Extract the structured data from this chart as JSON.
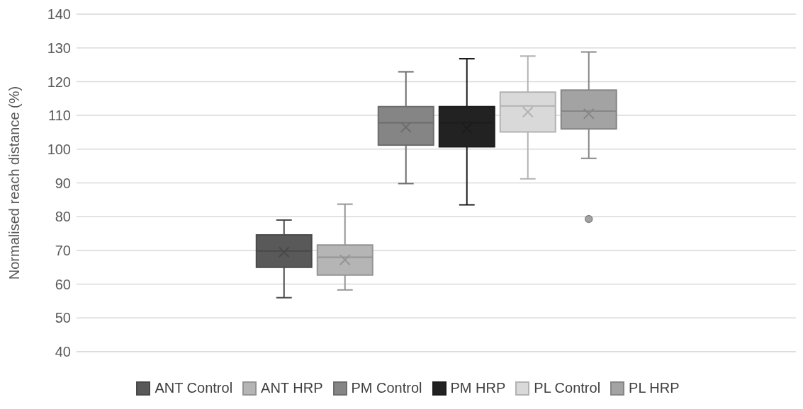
{
  "chart_data": {
    "type": "box",
    "ylabel": "Normalised reach distance (%)",
    "categories": [
      null
    ],
    "ylim": [
      40,
      140
    ],
    "yticks": [
      40,
      50,
      60,
      70,
      80,
      90,
      100,
      110,
      120,
      130,
      140
    ],
    "grid": "y",
    "legend": "bottom",
    "series": [
      {
        "name": "ANT Control",
        "color": "#595959",
        "boxes": [
          {
            "low": 56,
            "q1": 65,
            "median": 69.8,
            "q3": 74.6,
            "high": 79,
            "mean": 69.5
          }
        ]
      },
      {
        "name": "ANT HRP",
        "color": "#b5b5b5",
        "boxes": [
          {
            "low": 58.3,
            "q1": 62.7,
            "median": 68,
            "q3": 71.6,
            "high": 83.7,
            "mean": 67.2
          }
        ]
      },
      {
        "name": "PM Control",
        "color": "#858585",
        "boxes": [
          {
            "low": 89.8,
            "q1": 101.2,
            "median": 107.8,
            "q3": 112.6,
            "high": 122.9,
            "mean": 106.5
          }
        ]
      },
      {
        "name": "PM HRP",
        "color": "#222222",
        "boxes": [
          {
            "low": 83.5,
            "q1": 100.7,
            "median": 107.8,
            "q3": 112.6,
            "high": 126.8,
            "mean": 106.2
          }
        ]
      },
      {
        "name": "PL Control",
        "color": "#d9d9d9",
        "boxes": [
          {
            "low": 91.2,
            "q1": 105.1,
            "median": 112.8,
            "q3": 116.9,
            "high": 127.6,
            "mean": 111
          }
        ]
      },
      {
        "name": "PL HRP",
        "color": "#a3a3a3",
        "boxes": [
          {
            "low": 97.3,
            "q1": 106,
            "median": 111.3,
            "q3": 117.5,
            "high": 128.8,
            "mean": 110.5,
            "outliers": [
              79.3
            ]
          }
        ]
      }
    ]
  }
}
